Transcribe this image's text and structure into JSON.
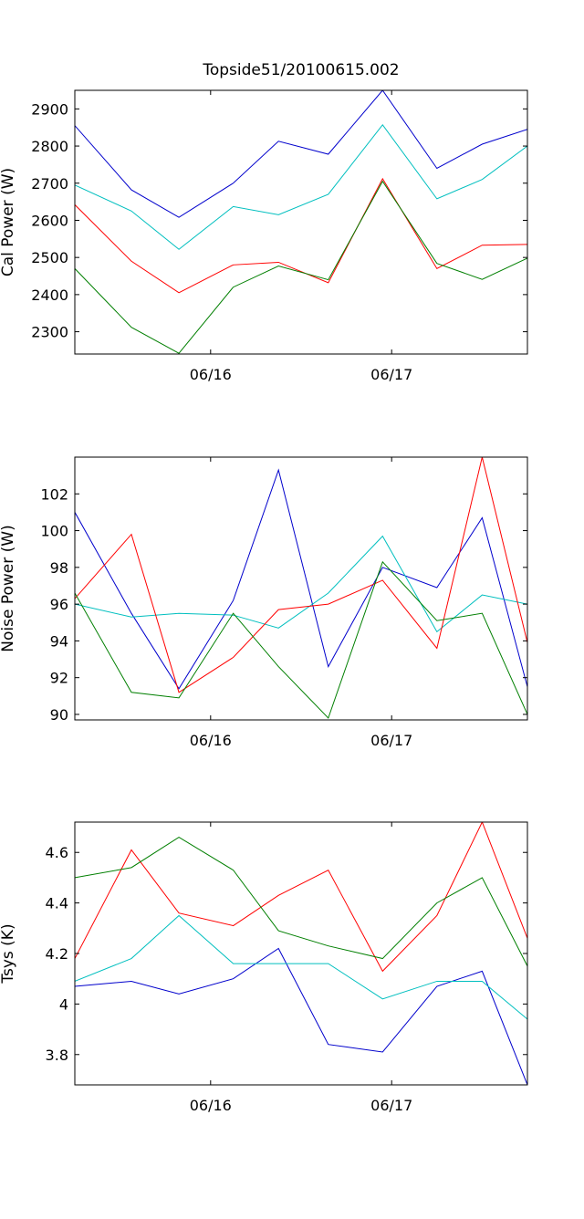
{
  "chart_data": [
    {
      "type": "line",
      "title": "Topside51/20100615.002",
      "xlabel": "",
      "ylabel": "Cal Power (W)",
      "x_ticks": [
        {
          "x": 6,
          "label": "06/16"
        },
        {
          "x": 14,
          "label": "06/17"
        }
      ],
      "xlim": [
        0,
        20
      ],
      "ylim": [
        2240,
        2950
      ],
      "y_ticks": [
        2300,
        2400,
        2500,
        2600,
        2700,
        2800,
        2900
      ],
      "x": [
        0,
        2.5,
        4.6,
        7,
        9,
        11.2,
        13.6,
        16,
        18,
        20
      ],
      "series": [
        {
          "color": "#0000cc",
          "values": [
            2855,
            2682,
            2608,
            2700,
            2813,
            2778,
            2950,
            2740,
            2805,
            2845
          ]
        },
        {
          "color": "#00bfbf",
          "values": [
            2695,
            2625,
            2522,
            2637,
            2615,
            2670,
            2857,
            2658,
            2710,
            2800
          ]
        },
        {
          "color": "#ff0000",
          "values": [
            2642,
            2490,
            2405,
            2480,
            2487,
            2432,
            2712,
            2470,
            2533,
            2535
          ]
        },
        {
          "color": "#007f00",
          "values": [
            2470,
            2312,
            2242,
            2420,
            2477,
            2440,
            2705,
            2484,
            2441,
            2498
          ]
        }
      ]
    },
    {
      "type": "line",
      "title": "",
      "xlabel": "",
      "ylabel": "Noise Power (W)",
      "x_ticks": [
        {
          "x": 6,
          "label": "06/16"
        },
        {
          "x": 14,
          "label": "06/17"
        }
      ],
      "xlim": [
        0,
        20
      ],
      "ylim": [
        89.7,
        104
      ],
      "y_ticks": [
        90,
        92,
        94,
        96,
        98,
        100,
        102
      ],
      "x": [
        0,
        2.5,
        4.6,
        7,
        9,
        11.2,
        13.6,
        16,
        18,
        20
      ],
      "series": [
        {
          "color": "#0000cc",
          "values": [
            101,
            95.5,
            91.4,
            96.2,
            103.3,
            92.6,
            98.0,
            96.9,
            100.7,
            91.5
          ]
        },
        {
          "color": "#00bfbf",
          "values": [
            96.0,
            95.3,
            95.5,
            95.4,
            94.7,
            96.6,
            99.7,
            94.5,
            96.5,
            96.0
          ]
        },
        {
          "color": "#ff0000",
          "values": [
            96.3,
            99.8,
            91.2,
            93.1,
            95.7,
            96.0,
            97.3,
            93.6,
            104.0,
            93.9
          ]
        },
        {
          "color": "#007f00",
          "values": [
            96.6,
            91.2,
            90.9,
            95.5,
            92.6,
            89.8,
            98.3,
            95.1,
            95.5,
            90.0
          ]
        }
      ]
    },
    {
      "type": "line",
      "title": "",
      "xlabel": "",
      "ylabel": "Tsys (K)",
      "x_ticks": [
        {
          "x": 6,
          "label": "06/16"
        },
        {
          "x": 14,
          "label": "06/17"
        }
      ],
      "xlim": [
        0,
        20
      ],
      "ylim": [
        3.68,
        4.72
      ],
      "y_ticks": [
        3.8,
        4,
        4.2,
        4.4,
        4.6
      ],
      "y_tick_labels": [
        "3.8",
        "4",
        "4.2",
        "4.4",
        "4.6"
      ],
      "x": [
        0,
        2.5,
        4.6,
        7,
        9,
        11.2,
        13.6,
        16,
        18,
        20
      ],
      "series": [
        {
          "color": "#0000cc",
          "values": [
            4.07,
            4.09,
            4.04,
            4.1,
            4.22,
            3.84,
            3.81,
            4.07,
            4.13,
            3.68
          ]
        },
        {
          "color": "#00bfbf",
          "values": [
            4.09,
            4.18,
            4.35,
            4.16,
            4.16,
            4.16,
            4.02,
            4.09,
            4.09,
            3.94
          ]
        },
        {
          "color": "#ff0000",
          "values": [
            4.18,
            4.61,
            4.36,
            4.31,
            4.43,
            4.53,
            4.13,
            4.35,
            4.72,
            4.26
          ]
        },
        {
          "color": "#007f00",
          "values": [
            4.5,
            4.54,
            4.66,
            4.53,
            4.29,
            4.23,
            4.18,
            4.4,
            4.5,
            4.15
          ]
        }
      ]
    }
  ]
}
